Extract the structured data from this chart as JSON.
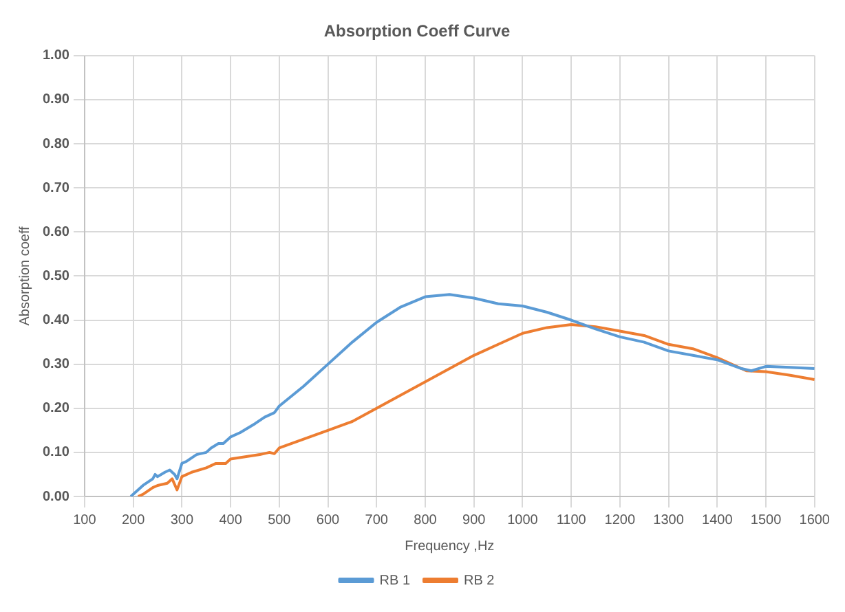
{
  "chart_data": {
    "type": "line",
    "title": "Absorption Coeff Curve",
    "xlabel": "Frequency ,Hz",
    "ylabel": "Absorption coeff",
    "xlim": [
      100,
      1600
    ],
    "xticks": [
      100,
      200,
      300,
      400,
      500,
      600,
      700,
      800,
      900,
      1000,
      1100,
      1200,
      1300,
      1400,
      1500,
      1600
    ],
    "ylim": [
      0,
      1
    ],
    "yticks": [
      {
        "value": 0,
        "label": "0.00"
      },
      {
        "value": 0.1,
        "label": "0.10"
      },
      {
        "value": 0.2,
        "label": "0.20"
      },
      {
        "value": 0.3,
        "label": "0.30"
      },
      {
        "value": 0.4,
        "label": "0.40"
      },
      {
        "value": 0.5,
        "label": "0.50"
      },
      {
        "value": 0.6,
        "label": "0.60"
      },
      {
        "value": 0.7,
        "label": "0.70"
      },
      {
        "value": 0.8,
        "label": "0.80"
      },
      {
        "value": 0.9,
        "label": "0.90"
      },
      {
        "value": 1,
        "label": "1.00"
      }
    ],
    "grid": true,
    "legend": "bottom",
    "marker": "none",
    "line_style": "solid",
    "series": [
      {
        "name": "RB 1",
        "color": "#5b9bd5",
        "x": [
          195,
          200,
          220,
          240,
          245,
          250,
          265,
          275,
          285,
          290,
          300,
          310,
          330,
          350,
          360,
          375,
          385,
          400,
          420,
          450,
          470,
          490,
          500,
          550,
          600,
          650,
          700,
          750,
          800,
          850,
          900,
          950,
          1000,
          1050,
          1100,
          1150,
          1200,
          1250,
          1300,
          1350,
          1400,
          1450,
          1470,
          1500,
          1550,
          1600
        ],
        "values": [
          0,
          0.005,
          0.025,
          0.04,
          0.05,
          0.045,
          0.055,
          0.06,
          0.05,
          0.04,
          0.075,
          0.08,
          0.095,
          0.1,
          0.11,
          0.12,
          0.12,
          0.135,
          0.145,
          0.165,
          0.18,
          0.19,
          0.205,
          0.25,
          0.3,
          0.35,
          0.395,
          0.43,
          0.453,
          0.458,
          0.45,
          0.437,
          0.432,
          0.418,
          0.4,
          0.38,
          0.362,
          0.35,
          0.33,
          0.32,
          0.31,
          0.29,
          0.285,
          0.295,
          0.293,
          0.29
        ]
      },
      {
        "name": "RB 2",
        "color": "#ed7d31",
        "x": [
          210,
          220,
          240,
          250,
          270,
          280,
          290,
          300,
          320,
          350,
          370,
          390,
          400,
          430,
          460,
          480,
          490,
          500,
          550,
          600,
          650,
          700,
          750,
          800,
          850,
          900,
          950,
          1000,
          1050,
          1100,
          1150,
          1200,
          1250,
          1300,
          1350,
          1400,
          1460,
          1500,
          1550,
          1600
        ],
        "values": [
          0,
          0.005,
          0.02,
          0.025,
          0.03,
          0.04,
          0.015,
          0.045,
          0.055,
          0.065,
          0.075,
          0.075,
          0.085,
          0.09,
          0.095,
          0.1,
          0.097,
          0.11,
          0.13,
          0.15,
          0.17,
          0.2,
          0.23,
          0.26,
          0.29,
          0.32,
          0.345,
          0.37,
          0.383,
          0.39,
          0.385,
          0.375,
          0.365,
          0.345,
          0.335,
          0.315,
          0.285,
          0.283,
          0.275,
          0.265
        ]
      }
    ]
  }
}
